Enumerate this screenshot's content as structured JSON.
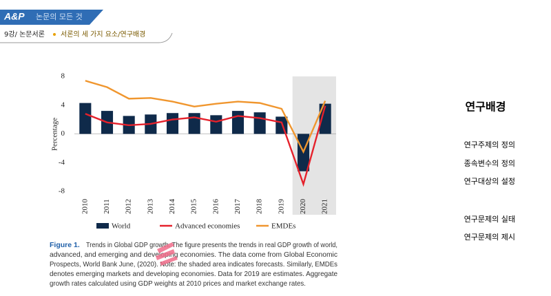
{
  "header": {
    "logo": "A&P",
    "banner": "논문의 모든 것",
    "lecture": "9강/ 논문서론",
    "topic": "서론의 세 가지 요소/연구배경"
  },
  "chart_data": {
    "type": "bar-line",
    "y_label": "Percentage",
    "categories": [
      "2010",
      "2011",
      "2012",
      "2013",
      "2014",
      "2015",
      "2016",
      "2017",
      "2018",
      "2019",
      "2020",
      "2021"
    ],
    "series": [
      {
        "name": "World",
        "kind": "bar",
        "color": "#0f2a4a",
        "values": [
          4.3,
          3.2,
          2.5,
          2.7,
          2.9,
          2.9,
          2.6,
          3.2,
          3.0,
          2.4,
          -5.2,
          4.2
        ]
      },
      {
        "name": "Advanced economies",
        "kind": "line",
        "color": "#e5212b",
        "values": [
          2.8,
          1.6,
          1.2,
          1.4,
          2.0,
          2.3,
          1.7,
          2.5,
          2.2,
          1.6,
          -7.0,
          3.9
        ]
      },
      {
        "name": "EMDEs",
        "kind": "line",
        "color": "#f0962e",
        "values": [
          7.4,
          6.5,
          4.9,
          5.0,
          4.5,
          3.8,
          4.2,
          4.5,
          4.3,
          3.5,
          -2.5,
          4.6
        ]
      }
    ],
    "ylim": [
      -8,
      8
    ],
    "yticks": [
      -8,
      -4,
      0,
      4,
      8
    ],
    "grid": false
  },
  "caption": {
    "label": "Figure 1.",
    "lines": [
      "Trends in Global GDP growth. The figure presents the trends in real GDP growth of world,",
      "advanced, and emerging and developing economies. The data come from Global Economic",
      "Prospects, World Bank June, (2020). Note: the shaded area indicates forecasts. Similarly, EMDEs",
      "denotes emerging markets and developing economies. Data for 2019 are estimates. Aggregate",
      "growth rates calculated using GDP weights at 2010 prices and market exchange rates."
    ]
  },
  "side": {
    "title": "연구배경",
    "items": [
      "연구주제의 정의",
      "종속변수의 정의",
      "연구대상의 설정",
      "연구문제의 실태",
      "연구문제의 제시"
    ]
  }
}
